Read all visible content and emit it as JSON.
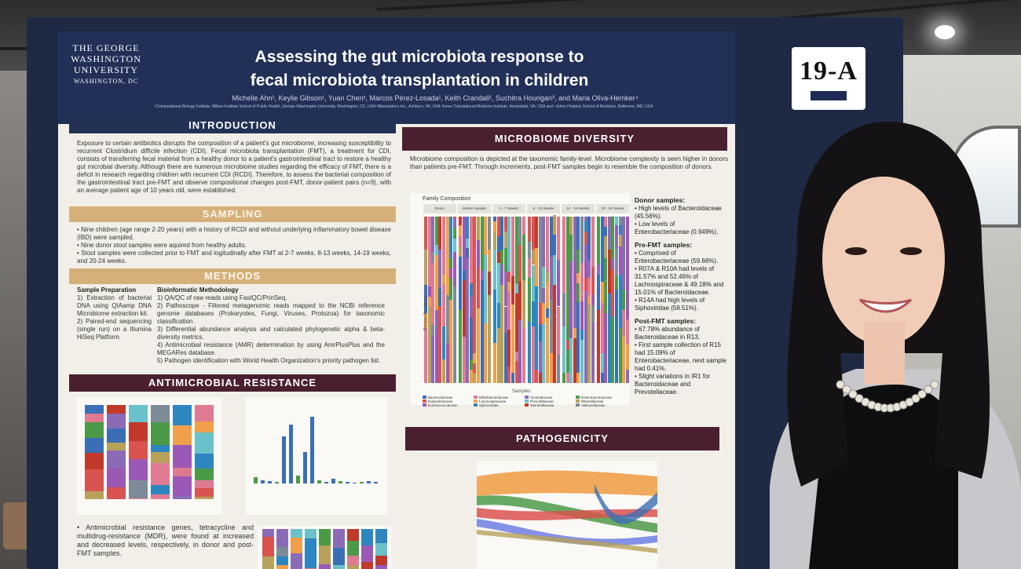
{
  "booth_tag": "19-A",
  "poster": {
    "institution": [
      "THE GEORGE",
      "WASHINGTON",
      "UNIVERSITY"
    ],
    "institution_city": "WASHINGTON, DC",
    "title_line1": "Assessing the gut microbiota response to",
    "title_line2": "fecal microbiota transplantation in children",
    "authors": "Michelle Ahn¹, Keylie Gibson¹, Yuan Chen², Marcos Pérez-Losada¹, Keith Crandall¹, Suchitra Hourigan³, and Maria Oliva-Hemker⁴",
    "affiliations": "¹Computational Biology Institute, Milken Institute School of Public Health, George Washington University, Washington, DC, USA  ²Mpexpatrics Inc., Ashburn, VA, USA  ³Inova Translational Medicine Institute, Annandale, VA, USA and  ⁴Johns Hopkins School of Medicine, Baltimore, MD, USA",
    "sections": {
      "introduction": "INTRODUCTION",
      "sampling": "SAMPLING",
      "methods": "METHODS",
      "amr": "ANTIMICROBIAL RESISTANCE",
      "diversity": "MICROBIOME DIVERSITY",
      "pathogenicity": "PATHOGENICITY"
    },
    "intro_text": "Exposure to certain antibiotics disrupts the composition of a patient's gut microbiome, increasing susceptibility to recurrent Clostridium difficile infection (CDI). Fecal microbiota transplantation (FMT), a treatment for CDI, consists of transferring fecal material from a healthy donor to a patient's gastrointestinal tract to restore a healthy gut microbial diversity. Although there are numerous microbiome studies regarding the efficacy of FMT, there is a deficit in research regarding children with recurrent CDI (RCDI). Therefore, to assess the bacterial composition of the gastrointestinal tract pre-FMT and observe compositional changes post-FMT, donor-patient pairs (n=9), with an average patient age of 10 years old, were established.",
    "sampling": [
      "Nine children (age range 2-20 years) with a history of RCDI and without underlying inflammatory bowel disease (IBD) were sampled.",
      "Nine donor stool samples were aquired from healthy adults.",
      "Stool samples were collected  prior to FMT and logitudinally after FMT at  2-7 weeks, 8-13 weeks, 14-19 weeks, and 20-24 weeks."
    ],
    "methods": {
      "prep_title": "Sample Preparation",
      "prep": [
        "1)  Extraction of bacterial DNA using QIAamp DNA Microbiome extraction kit.",
        "2)  Paired-end sequencing (single run) on a Illumina HiSeq Platform."
      ],
      "bio_title": "Bioinformatic Methodology",
      "bio": [
        "1)  QA/QC of raw reads using FastQC/PrinSeq.",
        "2)  Pathoscope - Filtered metagenomic reads mapped to the NCBI reference genome databases (Prokaryotes, Fungi, Viruses, Protozoa) for taxonomic classification.",
        "3)  Differential abundance analysis and calculated phylogenetic alpha & beta-diversity metrics.",
        "4)  Antimicrobial resistance (AMR) determination by using AmrPlusPlus and the MEGARes database.",
        "5)  Pathogen identification with World Health Organization's priority pathogen list."
      ]
    },
    "amr_text": "Antimicrobial resistance genes, tetracycline and multidrug-resistance (MDR), were found at increased and decreased levels, respectively, in donor and post-FMT samples.",
    "diversity_text": "Microbiome composition is depicted at the taxonomic family-level. Microbiome complexity is seen higher in donors than patients pre-FMT. Through increments, post-FMT samples begin to resemble the composition of donors.",
    "chart_title": "Family Composition",
    "chart_groups": [
      "Donor",
      "Before Sample",
      "2 - 7 Weeks",
      "8 - 13 Weeks",
      "14 - 19 Weeks",
      "20 - 24 Weeks"
    ],
    "chart_ylabel": "Relative Abundance",
    "chart_xlabel": "Samples",
    "chart_ticks": [
      "1.00",
      "0.75",
      "0.50",
      "0.25",
      "0.00"
    ],
    "legend_label": "Family",
    "legend": [
      "Bacteroidaceae",
      "Bifidobacteriaceae",
      "Clostridiaceae",
      "Enterobacteriaceae",
      "Eubacteriaceae",
      "Lachnospiraceae",
      "Prevotellaceae",
      "Rikenellaceae",
      "Ruminococcaceae",
      "Siphoviridae",
      "Tannerellaceae",
      "Veillonellaceae"
    ],
    "donor_notes_title": "Donor samples:",
    "donor_notes": [
      "High levels of Bacteroidaceae (45.56%).",
      "Low levels of Enterobacteriaceae (0.949%)."
    ],
    "pre_notes_title": "Pre-FMT samples:",
    "pre_notes": [
      "Comprised of Enterobacteriaceae (59.66%).",
      "R07A & R10A had levels of 31.57% and 52.46% of Lachnospiraceae & 49.18% and 15.01% of Bacteroidaceae.",
      "R14A had high levels of Siphoviridae (58.51%)."
    ],
    "post_notes_title": "Post-FMT samples:",
    "post_notes": [
      "67.78% abundance of Bacteroidaceae in R13.",
      "First sample collection of R15 had 15.09% of Enterobacteriaceae, next sample had 0.41%.",
      "Slight variations in IR1 for Bacteroidaceae and Prevotellaceae."
    ],
    "colors": {
      "header": "#223058",
      "navy": "#233155",
      "tan": "#d6b07a",
      "maroon": "#4a2030"
    }
  }
}
